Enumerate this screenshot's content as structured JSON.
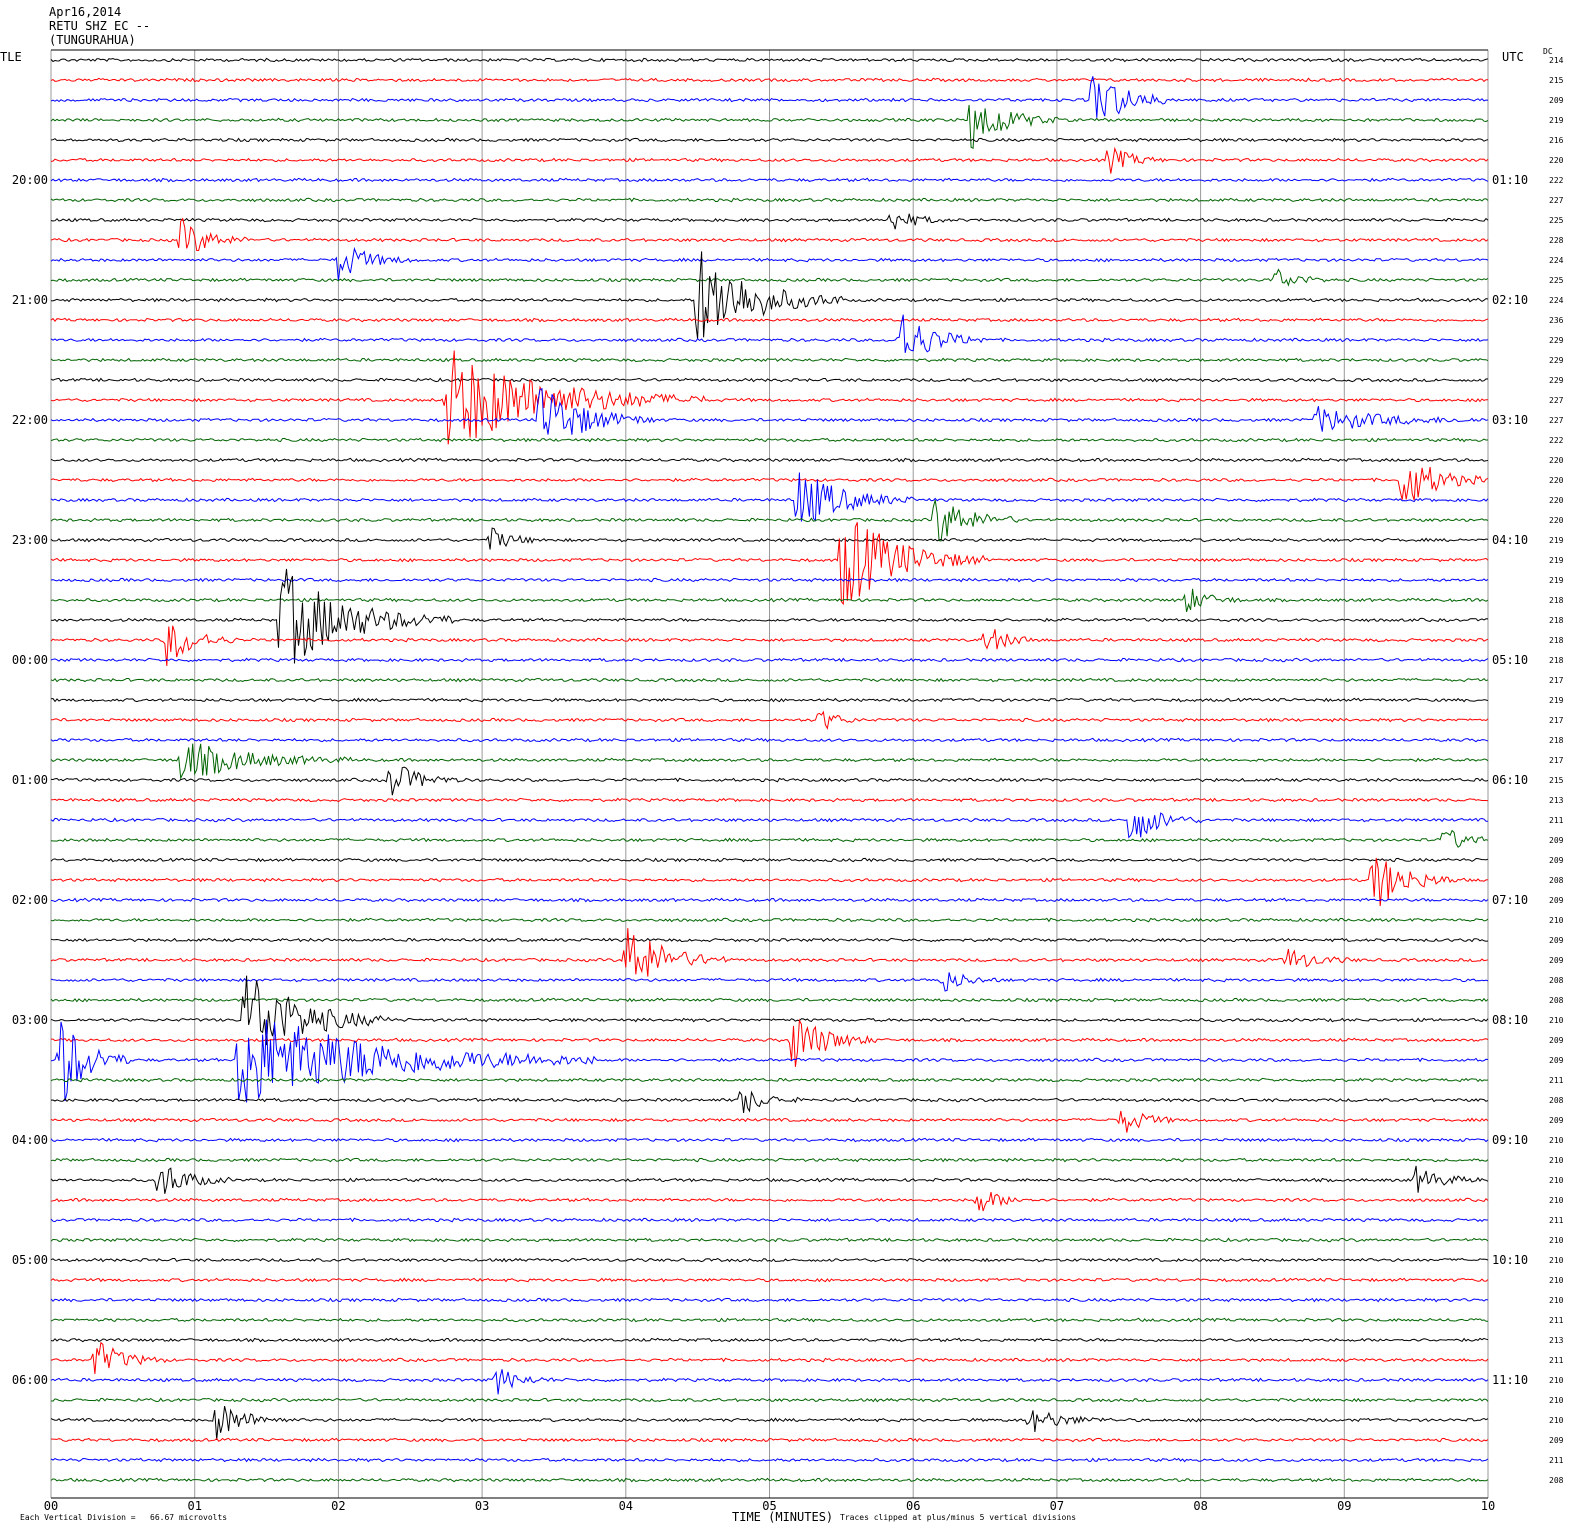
{
  "header": {
    "date": "Apr16,2014",
    "station": "RETU SHZ EC --",
    "location": "(TUNGURAHUA)",
    "left_zone": "TLE",
    "right_zone": "UTC",
    "dc_label": "DC"
  },
  "footer": {
    "scale_note": "Each Vertical Division =   66.67 microvolts",
    "xlabel": "TIME (MINUTES)",
    "clip_note": "Traces clipped at plus/minus 5 vertical divisions"
  },
  "colors": {
    "trace_cycle": [
      "#000000",
      "#ff0000",
      "#0000ff",
      "#006400"
    ],
    "grid": "#999999"
  },
  "chart_data": {
    "type": "line",
    "chart_kind": "helicorder",
    "x_ticks": [
      "00",
      "01",
      "02",
      "03",
      "04",
      "05",
      "06",
      "07",
      "08",
      "09",
      "10"
    ],
    "xlim": [
      0,
      10
    ],
    "minutes_per_line": 10,
    "row_count": 72,
    "left_hour_labels": [
      {
        "row": 6,
        "label": "20:00"
      },
      {
        "row": 12,
        "label": "21:00"
      },
      {
        "row": 18,
        "label": "22:00"
      },
      {
        "row": 24,
        "label": "23:00"
      },
      {
        "row": 30,
        "label": "00:00"
      },
      {
        "row": 36,
        "label": "01:00"
      },
      {
        "row": 42,
        "label": "02:00"
      },
      {
        "row": 48,
        "label": "03:00"
      },
      {
        "row": 54,
        "label": "04:00"
      },
      {
        "row": 60,
        "label": "05:00"
      },
      {
        "row": 66,
        "label": "06:00"
      }
    ],
    "right_hour_labels": [
      {
        "row": 6,
        "label": "01:10"
      },
      {
        "row": 12,
        "label": "02:10"
      },
      {
        "row": 18,
        "label": "03:10"
      },
      {
        "row": 24,
        "label": "04:10"
      },
      {
        "row": 30,
        "label": "05:10"
      },
      {
        "row": 36,
        "label": "06:10"
      },
      {
        "row": 42,
        "label": "07:10"
      },
      {
        "row": 48,
        "label": "08:10"
      },
      {
        "row": 54,
        "label": "09:10"
      },
      {
        "row": 60,
        "label": "10:10"
      },
      {
        "row": 66,
        "label": "11:10"
      }
    ],
    "dc_offsets": [
      "214",
      "215",
      "209",
      "219",
      "216",
      "220",
      "222",
      "227",
      "225",
      "228",
      "224",
      "225",
      "224",
      "236",
      "229",
      "229",
      "229",
      "227",
      "227",
      "222",
      "220",
      "220",
      "220",
      "220",
      "219",
      "219",
      "219",
      "218",
      "218",
      "218",
      "218",
      "217",
      "219",
      "217",
      "218",
      "217",
      "215",
      "213",
      "211",
      "209",
      "209",
      "208",
      "209",
      "210",
      "209",
      "209",
      "208",
      "208",
      "210",
      "209",
      "209",
      "211",
      "208",
      "209",
      "210",
      "210",
      "210",
      "210",
      "211",
      "210",
      "210",
      "210",
      "210",
      "211",
      "213",
      "211",
      "210",
      "210",
      "210",
      "209",
      "211",
      "208"
    ],
    "events": [
      {
        "row": 2,
        "minute": 7.25,
        "amp": 3.0,
        "dur": 0.6
      },
      {
        "row": 3,
        "minute": 6.4,
        "amp": 3.0,
        "dur": 0.6
      },
      {
        "row": 5,
        "minute": 7.35,
        "amp": 1.5,
        "dur": 0.4
      },
      {
        "row": 8,
        "minute": 5.85,
        "amp": 1.2,
        "dur": 0.4
      },
      {
        "row": 9,
        "minute": 0.9,
        "amp": 2.0,
        "dur": 0.5
      },
      {
        "row": 10,
        "minute": 2.0,
        "amp": 2.0,
        "dur": 0.5
      },
      {
        "row": 11,
        "minute": 8.5,
        "amp": 1.3,
        "dur": 0.4
      },
      {
        "row": 12,
        "minute": 4.5,
        "amp": 5.0,
        "dur": 1.0
      },
      {
        "row": 14,
        "minute": 5.9,
        "amp": 3.0,
        "dur": 0.6
      },
      {
        "row": 17,
        "minute": 2.75,
        "amp": 5.0,
        "dur": 1.8
      },
      {
        "row": 18,
        "minute": 3.4,
        "amp": 3.5,
        "dur": 0.8
      },
      {
        "row": 18,
        "minute": 8.8,
        "amp": 1.2,
        "dur": 1.2
      },
      {
        "row": 21,
        "minute": 9.4,
        "amp": 3.0,
        "dur": 0.6
      },
      {
        "row": 22,
        "minute": 5.2,
        "amp": 3.0,
        "dur": 0.8
      },
      {
        "row": 23,
        "minute": 6.15,
        "amp": 2.5,
        "dur": 0.6
      },
      {
        "row": 24,
        "minute": 3.05,
        "amp": 1.2,
        "dur": 0.4
      },
      {
        "row": 25,
        "minute": 5.5,
        "amp": 5.0,
        "dur": 1.0
      },
      {
        "row": 27,
        "minute": 7.9,
        "amp": 1.3,
        "dur": 0.4
      },
      {
        "row": 28,
        "minute": 1.6,
        "amp": 5.0,
        "dur": 1.2
      },
      {
        "row": 29,
        "minute": 0.8,
        "amp": 2.5,
        "dur": 0.5
      },
      {
        "row": 29,
        "minute": 6.5,
        "amp": 1.5,
        "dur": 0.4
      },
      {
        "row": 33,
        "minute": 5.35,
        "amp": 1.2,
        "dur": 0.3
      },
      {
        "row": 35,
        "minute": 0.9,
        "amp": 2.0,
        "dur": 1.2
      },
      {
        "row": 36,
        "minute": 2.35,
        "amp": 2.0,
        "dur": 0.5
      },
      {
        "row": 38,
        "minute": 7.5,
        "amp": 2.5,
        "dur": 0.5
      },
      {
        "row": 39,
        "minute": 9.7,
        "amp": 1.2,
        "dur": 0.4
      },
      {
        "row": 41,
        "minute": 9.2,
        "amp": 3.0,
        "dur": 0.6
      },
      {
        "row": 45,
        "minute": 4.0,
        "amp": 3.5,
        "dur": 0.7
      },
      {
        "row": 45,
        "minute": 8.6,
        "amp": 1.2,
        "dur": 0.5
      },
      {
        "row": 46,
        "minute": 6.2,
        "amp": 1.2,
        "dur": 0.4
      },
      {
        "row": 48,
        "minute": 1.35,
        "amp": 5.0,
        "dur": 1.0
      },
      {
        "row": 49,
        "minute": 5.15,
        "amp": 3.0,
        "dur": 0.6
      },
      {
        "row": 50,
        "minute": 0.05,
        "amp": 5.0,
        "dur": 0.5
      },
      {
        "row": 50,
        "minute": 1.3,
        "amp": 5.0,
        "dur": 2.5
      },
      {
        "row": 52,
        "minute": 4.8,
        "amp": 1.5,
        "dur": 0.4
      },
      {
        "row": 53,
        "minute": 7.45,
        "amp": 1.5,
        "dur": 0.4
      },
      {
        "row": 56,
        "minute": 0.75,
        "amp": 2.0,
        "dur": 0.5
      },
      {
        "row": 56,
        "minute": 9.5,
        "amp": 1.2,
        "dur": 0.5
      },
      {
        "row": 57,
        "minute": 6.45,
        "amp": 1.3,
        "dur": 0.4
      },
      {
        "row": 65,
        "minute": 0.3,
        "amp": 2.0,
        "dur": 0.5
      },
      {
        "row": 66,
        "minute": 3.1,
        "amp": 1.3,
        "dur": 0.4
      },
      {
        "row": 68,
        "minute": 1.15,
        "amp": 2.0,
        "dur": 0.5
      },
      {
        "row": 68,
        "minute": 6.8,
        "amp": 1.2,
        "dur": 0.6
      }
    ]
  }
}
